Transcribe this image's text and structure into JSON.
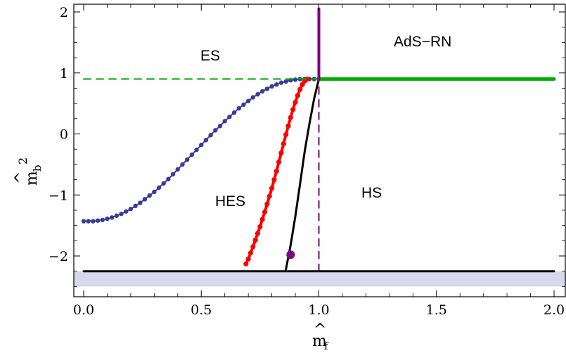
{
  "chart_data": {
    "type": "line",
    "xlabel": "m̂_f",
    "ylabel": "m̂_b²",
    "xlim": [
      0.0,
      2.0
    ],
    "ylim": [
      -2.65,
      2.05
    ],
    "xticks": [
      "0.0",
      "0.5",
      "1.0",
      "1.5",
      "2.0"
    ],
    "yticks": [
      "−2",
      "−1",
      "0",
      "1",
      "2"
    ],
    "region_labels": [
      "ES",
      "AdS−RN",
      "HES",
      "HS"
    ],
    "series": [
      {
        "color": "#3b3b98",
        "style": "dots-line",
        "x": [
          0.0,
          0.02,
          0.04,
          0.06,
          0.08,
          0.1,
          0.12,
          0.14,
          0.16,
          0.18,
          0.2,
          0.22,
          0.24,
          0.26,
          0.28,
          0.3,
          0.32,
          0.34,
          0.36,
          0.38,
          0.4,
          0.42,
          0.44,
          0.46,
          0.48,
          0.5,
          0.52,
          0.54,
          0.56,
          0.58,
          0.6,
          0.62,
          0.64,
          0.66,
          0.68,
          0.7,
          0.72,
          0.74,
          0.76,
          0.78,
          0.8,
          0.82,
          0.84,
          0.86,
          0.88,
          0.9,
          0.92,
          0.94,
          0.96,
          0.98,
          1.0
        ],
        "y": [
          -1.43,
          -1.43,
          -1.43,
          -1.42,
          -1.41,
          -1.39,
          -1.37,
          -1.34,
          -1.31,
          -1.27,
          -1.23,
          -1.18,
          -1.13,
          -1.07,
          -1.01,
          -0.95,
          -0.88,
          -0.81,
          -0.74,
          -0.66,
          -0.58,
          -0.5,
          -0.42,
          -0.34,
          -0.26,
          -0.18,
          -0.1,
          -0.02,
          0.06,
          0.13,
          0.21,
          0.28,
          0.35,
          0.42,
          0.48,
          0.54,
          0.6,
          0.65,
          0.7,
          0.74,
          0.78,
          0.81,
          0.84,
          0.86,
          0.88,
          0.89,
          0.9,
          0.9,
          0.9,
          0.9,
          0.9
        ]
      },
      {
        "color": "#ff0000",
        "style": "thick-dots",
        "x": [
          0.69,
          0.7,
          0.71,
          0.72,
          0.73,
          0.74,
          0.75,
          0.76,
          0.77,
          0.78,
          0.79,
          0.8,
          0.81,
          0.82,
          0.83,
          0.84,
          0.85,
          0.86,
          0.87,
          0.88,
          0.89,
          0.9,
          0.91,
          0.92,
          0.93,
          0.94,
          0.95
        ],
        "y": [
          -2.13,
          -2.05,
          -1.95,
          -1.85,
          -1.74,
          -1.63,
          -1.52,
          -1.4,
          -1.28,
          -1.15,
          -1.02,
          -0.89,
          -0.75,
          -0.61,
          -0.46,
          -0.31,
          -0.16,
          -0.01,
          0.13,
          0.27,
          0.4,
          0.52,
          0.63,
          0.73,
          0.81,
          0.87,
          0.9
        ]
      },
      {
        "color": "#000000",
        "style": "solid",
        "x": [
          0.86,
          0.88,
          0.9,
          0.92,
          0.94,
          0.96,
          0.98,
          1.0
        ],
        "y": [
          -2.22,
          -1.82,
          -1.35,
          -0.82,
          -0.28,
          0.17,
          0.58,
          0.9
        ]
      },
      {
        "color": "#00aa00",
        "style": "solid",
        "x": [
          1.0,
          2.0
        ],
        "y": [
          0.9,
          0.9
        ]
      },
      {
        "color": "#00aa00",
        "style": "dashed",
        "x": [
          0.0,
          1.0
        ],
        "y": [
          0.9,
          0.9
        ]
      },
      {
        "color": "#800080",
        "style": "solid",
        "x": [
          1.0,
          1.0
        ],
        "y": [
          0.9,
          2.05
        ]
      },
      {
        "color": "#800080",
        "style": "dashed",
        "x": [
          1.0,
          1.0
        ],
        "y": [
          -2.25,
          0.9
        ]
      },
      {
        "color": "#000000",
        "style": "solid",
        "x": [
          0.0,
          2.0
        ],
        "y": [
          -2.25,
          -2.25
        ]
      }
    ],
    "point": {
      "x": 0.88,
      "y": -1.98,
      "color": "#800080"
    },
    "shaded_band": {
      "y": [
        -2.5,
        -2.25
      ],
      "color": "#d8d8ec"
    }
  }
}
